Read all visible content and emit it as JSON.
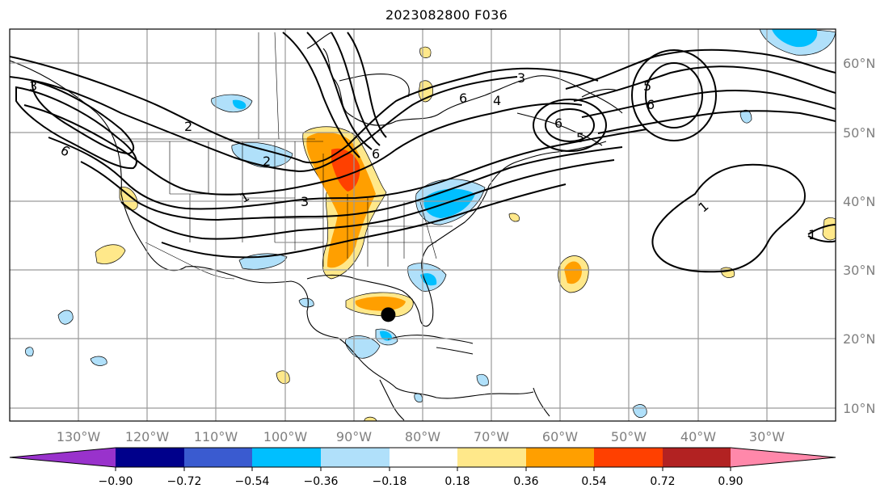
{
  "title": "2023082800 F036",
  "map": {
    "longitude_labels": [
      "130°W",
      "120°W",
      "110°W",
      "100°W",
      "90°W",
      "80°W",
      "70°W",
      "60°W",
      "50°W",
      "40°W",
      "30°W"
    ],
    "latitude_labels": [
      "60°N",
      "50°N",
      "40°N",
      "30°N",
      "20°N",
      "10°N"
    ],
    "contour_labels": [
      "6",
      "2",
      "3",
      "6",
      "2",
      "1",
      "3",
      "5",
      "6",
      "4",
      "3",
      "6",
      "5",
      "6",
      "1",
      "1"
    ],
    "marker": {
      "type": "storm-center-dot",
      "lon": -85,
      "lat": 23.5,
      "color": "#000000"
    }
  },
  "colorbar": {
    "tick_labels": [
      "−0.90",
      "−0.72",
      "−0.54",
      "−0.36",
      "−0.18",
      "0.18",
      "0.36",
      "0.54",
      "0.72",
      "0.90"
    ],
    "colors": [
      "#9932cc",
      "#00008b",
      "#3a5bd0",
      "#00bfff",
      "#b0e0fa",
      "#ffffff",
      "#ffe88a",
      "#ff9f00",
      "#ff4000",
      "#b22222",
      "#ff88aa"
    ]
  }
}
